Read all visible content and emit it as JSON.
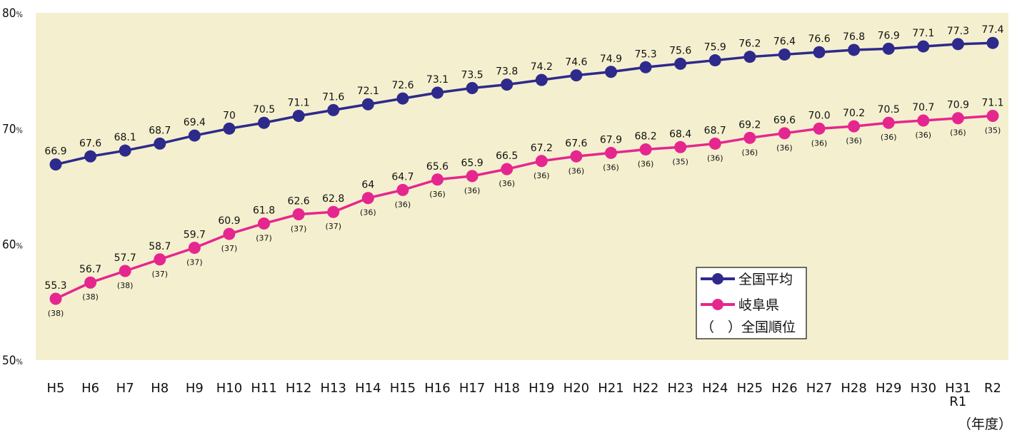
{
  "chart_data": {
    "type": "line",
    "categories": [
      "H5",
      "H6",
      "H7",
      "H8",
      "H9",
      "H10",
      "H11",
      "H12",
      "H13",
      "H14",
      "H15",
      "H16",
      "H17",
      "H18",
      "H19",
      "H20",
      "H21",
      "H22",
      "H23",
      "H24",
      "H25",
      "H26",
      "H27",
      "H28",
      "H29",
      "H30",
      "H31\nR1",
      "R2"
    ],
    "series": [
      {
        "name": "全国平均",
        "color": "#2e2a8c",
        "values": [
          66.9,
          67.6,
          68.1,
          68.7,
          69.4,
          70,
          70.5,
          71.1,
          71.6,
          72.1,
          72.6,
          73.1,
          73.5,
          73.8,
          74.2,
          74.6,
          74.9,
          75.3,
          75.6,
          75.9,
          76.2,
          76.4,
          76.6,
          76.8,
          76.9,
          77.1,
          77.3,
          77.4
        ],
        "labels": [
          "66.9",
          "67.6",
          "68.1",
          "68.7",
          "69.4",
          "70",
          "70.5",
          "71.1",
          "71.6",
          "72.1",
          "72.6",
          "73.1",
          "73.5",
          "73.8",
          "74.2",
          "74.6",
          "74.9",
          "75.3",
          "75.6",
          "75.9",
          "76.2",
          "76.4",
          "76.6",
          "76.8",
          "76.9",
          "77.1",
          "77.3",
          "77.4"
        ]
      },
      {
        "name": "岐阜県",
        "color": "#e6268f",
        "values": [
          55.3,
          56.7,
          57.7,
          58.7,
          59.7,
          60.9,
          61.8,
          62.6,
          62.8,
          64,
          64.7,
          65.6,
          65.9,
          66.5,
          67.2,
          67.6,
          67.9,
          68.2,
          68.4,
          68.7,
          69.2,
          69.6,
          70.0,
          70.2,
          70.5,
          70.7,
          70.9,
          71.1
        ],
        "labels": [
          "55.3",
          "56.7",
          "57.7",
          "58.7",
          "59.7",
          "60.9",
          "61.8",
          "62.6",
          "62.8",
          "64",
          "64.7",
          "65.6",
          "65.9",
          "66.5",
          "67.2",
          "67.6",
          "67.9",
          "68.2",
          "68.4",
          "68.7",
          "69.2",
          "69.6",
          "70.0",
          "70.2",
          "70.5",
          "70.7",
          "70.9",
          "71.1"
        ],
        "ranks": [
          "(38)",
          "(38)",
          "(38)",
          "(37)",
          "(37)",
          "(37)",
          "(37)",
          "(37)",
          "(37)",
          "(36)",
          "(36)",
          "(36)",
          "(36)",
          "(36)",
          "(36)",
          "(36)",
          "(36)",
          "(36)",
          "(35)",
          "(36)",
          "(36)",
          "(36)",
          "(36)",
          "(36)",
          "(36)",
          "(36)",
          "(36)",
          "(35)"
        ]
      }
    ],
    "yticks": [
      {
        "value": 80,
        "label": "80",
        "suffix": "%"
      },
      {
        "value": 70,
        "label": "70",
        "suffix": "%"
      },
      {
        "value": 60,
        "label": "60",
        "suffix": "%"
      },
      {
        "value": 50,
        "label": "50",
        "suffix": "%"
      }
    ],
    "ylim": [
      50,
      80
    ],
    "xlabel_unit": "（年度）",
    "legend": {
      "placement": "lower-right",
      "items": [
        "全国平均",
        "岐阜県"
      ],
      "note": "（　）全国順位"
    },
    "plot_background": "#f4f0cf",
    "grid": false
  }
}
